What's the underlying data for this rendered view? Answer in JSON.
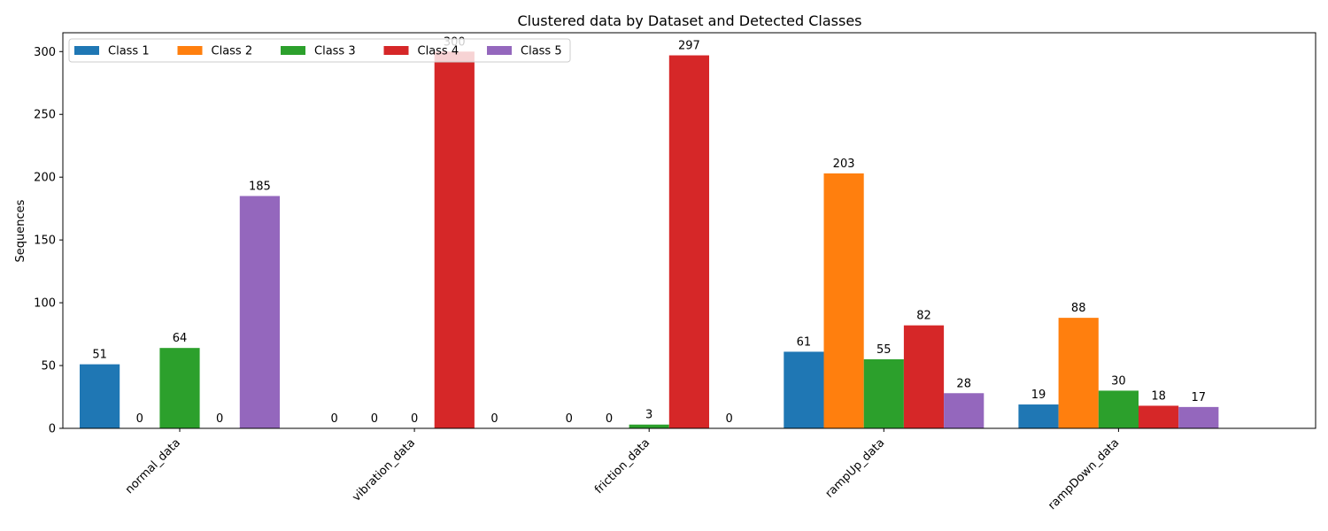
{
  "chart_data": {
    "type": "bar",
    "title": "Clustered data by Dataset and Detected Classes",
    "xlabel": "",
    "ylabel": "Sequences",
    "categories": [
      "normal_data",
      "vibration_data",
      "friction_data",
      "rampUp_data",
      "rampDown_data"
    ],
    "series": [
      {
        "name": "Class 1",
        "color": "#1f77b4",
        "values": [
          51,
          0,
          0,
          61,
          19
        ]
      },
      {
        "name": "Class 2",
        "color": "#ff7f0e",
        "values": [
          0,
          0,
          0,
          203,
          88
        ]
      },
      {
        "name": "Class 3",
        "color": "#2ca02c",
        "values": [
          64,
          0,
          3,
          55,
          30
        ]
      },
      {
        "name": "Class 4",
        "color": "#d62728",
        "values": [
          0,
          300,
          297,
          82,
          18
        ]
      },
      {
        "name": "Class 5",
        "color": "#9467bd",
        "values": [
          185,
          0,
          0,
          28,
          17
        ]
      }
    ],
    "ylim": [
      0,
      315
    ],
    "yticks": [
      0,
      50,
      100,
      150,
      200,
      250,
      300
    ],
    "grid": false,
    "legend_position": "upper-left"
  }
}
